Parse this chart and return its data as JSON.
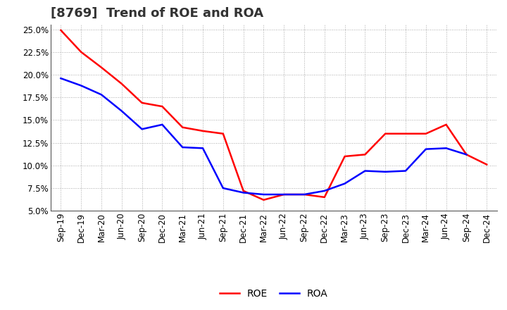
{
  "title": "[8769]  Trend of ROE and ROA",
  "x_labels": [
    "Sep-19",
    "Dec-19",
    "Mar-20",
    "Jun-20",
    "Sep-20",
    "Dec-20",
    "Mar-21",
    "Jun-21",
    "Sep-21",
    "Dec-21",
    "Mar-22",
    "Jun-22",
    "Sep-22",
    "Dec-22",
    "Mar-23",
    "Jun-23",
    "Sep-23",
    "Dec-23",
    "Mar-24",
    "Jun-24",
    "Sep-24",
    "Dec-24"
  ],
  "roe": [
    24.9,
    22.5,
    20.8,
    19.0,
    16.9,
    16.5,
    14.2,
    13.8,
    13.5,
    7.2,
    6.2,
    6.8,
    6.8,
    6.5,
    11.0,
    11.2,
    13.5,
    13.5,
    13.5,
    14.5,
    11.2,
    10.1
  ],
  "roa": [
    19.6,
    18.8,
    17.8,
    16.0,
    14.0,
    14.5,
    12.0,
    11.9,
    7.5,
    7.0,
    6.8,
    6.8,
    6.8,
    7.2,
    8.0,
    9.4,
    9.3,
    9.4,
    11.8,
    11.9,
    11.2,
    null
  ],
  "roe_color": "#ff0000",
  "roa_color": "#0000ff",
  "ylim_min": 5.0,
  "ylim_max": 25.5,
  "yticks": [
    5.0,
    7.5,
    10.0,
    12.5,
    15.0,
    17.5,
    20.0,
    22.5,
    25.0
  ],
  "background_color": "#ffffff",
  "plot_bg_color": "#ffffff",
  "grid_color": "#aaaaaa",
  "title_fontsize": 13,
  "legend_fontsize": 10,
  "tick_fontsize": 8.5,
  "line_width": 1.8
}
